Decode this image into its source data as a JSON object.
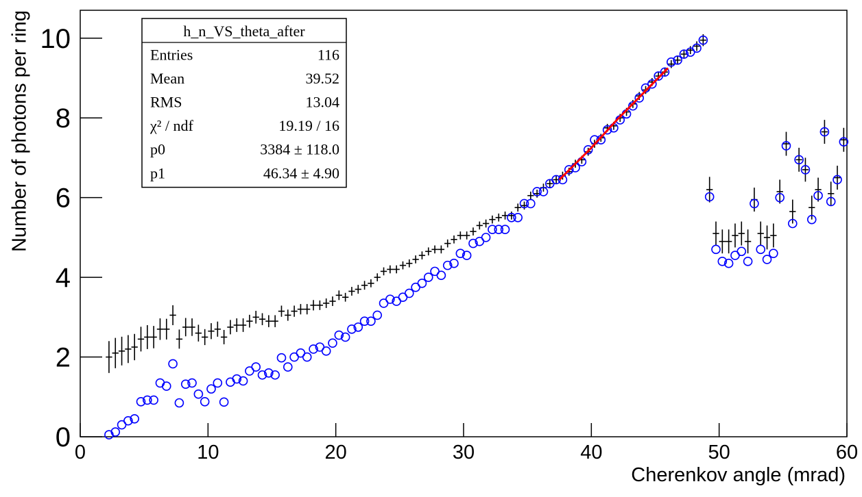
{
  "chart_data": {
    "type": "scatter",
    "xlabel": "Cherenkov angle (mrad)",
    "ylabel": "Number of photons per ring",
    "xlim": [
      0,
      60
    ],
    "xticks": [
      0,
      10,
      20,
      30,
      40,
      50,
      60
    ],
    "ylim": [
      0,
      10.7
    ],
    "yticks": [
      0,
      2,
      4,
      6,
      8,
      10
    ],
    "x": [
      2.25,
      2.75,
      3.25,
      3.75,
      4.25,
      4.75,
      5.25,
      5.75,
      6.25,
      6.75,
      7.25,
      7.75,
      8.25,
      8.75,
      9.25,
      9.75,
      10.25,
      10.75,
      11.25,
      11.75,
      12.25,
      12.75,
      13.25,
      13.75,
      14.25,
      14.75,
      15.25,
      15.75,
      16.25,
      16.75,
      17.25,
      17.75,
      18.25,
      18.75,
      19.25,
      19.75,
      20.25,
      20.75,
      21.25,
      21.75,
      22.25,
      22.75,
      23.25,
      23.75,
      24.25,
      24.75,
      25.25,
      25.75,
      26.25,
      26.75,
      27.25,
      27.75,
      28.25,
      28.75,
      29.25,
      29.75,
      30.25,
      30.75,
      31.25,
      31.75,
      32.25,
      32.75,
      33.25,
      33.75,
      34.25,
      34.75,
      35.25,
      35.75,
      36.25,
      36.75,
      37.25,
      37.75,
      38.25,
      38.75,
      39.25,
      39.75,
      40.25,
      40.75,
      41.25,
      41.75,
      42.25,
      42.75,
      43.25,
      43.75,
      44.25,
      44.75,
      45.25,
      45.75,
      46.25,
      46.75,
      47.25,
      47.75,
      48.25,
      48.75,
      49.25,
      49.75,
      50.25,
      50.75,
      51.25,
      51.75,
      52.25,
      52.75,
      53.25,
      53.75,
      54.25,
      54.75,
      55.25,
      55.75,
      56.25,
      56.75,
      57.25,
      57.75,
      58.25,
      58.75,
      59.25,
      59.75
    ],
    "series": [
      {
        "marker": "cross",
        "color": "#000000",
        "values": [
          2.0,
          2.1,
          2.15,
          2.2,
          2.25,
          2.45,
          2.5,
          2.5,
          2.7,
          2.7,
          3.05,
          2.45,
          2.75,
          2.75,
          2.6,
          2.5,
          2.65,
          2.7,
          2.5,
          2.75,
          2.8,
          2.8,
          2.9,
          3.0,
          2.95,
          2.9,
          2.9,
          3.15,
          3.05,
          3.15,
          3.2,
          3.2,
          3.3,
          3.3,
          3.35,
          3.4,
          3.55,
          3.5,
          3.65,
          3.7,
          3.8,
          3.85,
          4.0,
          4.15,
          4.2,
          4.2,
          4.3,
          4.35,
          4.45,
          4.55,
          4.65,
          4.7,
          4.7,
          4.85,
          4.95,
          5.05,
          5.05,
          5.15,
          5.3,
          5.35,
          5.45,
          5.5,
          5.55,
          5.55,
          5.75,
          5.8,
          6.05,
          6.1,
          6.25,
          6.35,
          6.45,
          6.55,
          6.65,
          6.85,
          6.95,
          7.15,
          7.35,
          7.5,
          7.75,
          7.8,
          8.0,
          8.15,
          8.35,
          8.55,
          8.7,
          8.9,
          9.05,
          9.15,
          9.35,
          9.45,
          9.6,
          9.7,
          9.8,
          9.95,
          6.2,
          5.1,
          4.9,
          4.9,
          5.05,
          5.1,
          4.9,
          5.95,
          5.1,
          5.0,
          5.05,
          6.15,
          7.35,
          5.65,
          6.95,
          6.7,
          5.75,
          6.2,
          7.65,
          6.1,
          6.5,
          7.45
        ],
        "errors": [
          0.4,
          0.38,
          0.36,
          0.35,
          0.33,
          0.31,
          0.3,
          0.28,
          0.27,
          0.26,
          0.25,
          0.24,
          0.23,
          0.22,
          0.21,
          0.2,
          0.2,
          0.19,
          0.18,
          0.18,
          0.17,
          0.17,
          0.16,
          0.16,
          0.15,
          0.15,
          0.15,
          0.14,
          0.14,
          0.14,
          0.13,
          0.13,
          0.13,
          0.12,
          0.12,
          0.12,
          0.12,
          0.11,
          0.11,
          0.11,
          0.11,
          0.1,
          0.1,
          0.1,
          0.1,
          0.1,
          0.1,
          0.1,
          0.1,
          0.1,
          0.1,
          0.1,
          0.1,
          0.1,
          0.1,
          0.1,
          0.1,
          0.1,
          0.1,
          0.1,
          0.1,
          0.1,
          0.1,
          0.1,
          0.1,
          0.1,
          0.1,
          0.1,
          0.1,
          0.1,
          0.1,
          0.1,
          0.1,
          0.1,
          0.1,
          0.1,
          0.1,
          0.1,
          0.1,
          0.1,
          0.1,
          0.1,
          0.1,
          0.1,
          0.1,
          0.1,
          0.1,
          0.1,
          0.1,
          0.1,
          0.1,
          0.1,
          0.12,
          0.15,
          0.32,
          0.3,
          0.3,
          0.3,
          0.3,
          0.3,
          0.3,
          0.3,
          0.3,
          0.3,
          0.3,
          0.3,
          0.3,
          0.3,
          0.3,
          0.3,
          0.3,
          0.3,
          0.3,
          0.3,
          0.3,
          0.3
        ]
      },
      {
        "marker": "circle",
        "color": "#0000ff",
        "values": [
          0.05,
          0.12,
          0.3,
          0.4,
          0.45,
          0.88,
          0.92,
          0.92,
          1.35,
          1.27,
          1.83,
          0.85,
          1.32,
          1.35,
          1.07,
          0.88,
          1.2,
          1.35,
          0.87,
          1.37,
          1.45,
          1.4,
          1.65,
          1.75,
          1.55,
          1.6,
          1.55,
          1.98,
          1.75,
          2.0,
          2.1,
          2.0,
          2.2,
          2.25,
          2.15,
          2.35,
          2.55,
          2.5,
          2.7,
          2.75,
          2.9,
          2.9,
          3.05,
          3.35,
          3.45,
          3.4,
          3.5,
          3.6,
          3.75,
          3.85,
          4.0,
          4.15,
          4.05,
          4.3,
          4.35,
          4.6,
          4.55,
          4.85,
          4.9,
          5.0,
          5.2,
          5.2,
          5.2,
          5.5,
          5.5,
          5.85,
          5.85,
          6.15,
          6.15,
          6.35,
          6.45,
          6.45,
          6.7,
          6.75,
          6.9,
          7.2,
          7.45,
          7.45,
          7.7,
          7.75,
          7.95,
          8.1,
          8.3,
          8.5,
          8.75,
          8.85,
          9.05,
          9.15,
          9.4,
          9.45,
          9.6,
          9.65,
          9.75,
          9.95,
          6.02,
          4.7,
          4.4,
          4.35,
          4.55,
          4.65,
          4.4,
          5.85,
          4.7,
          4.45,
          4.6,
          6.0,
          7.3,
          5.35,
          6.95,
          6.7,
          5.45,
          6.05,
          7.65,
          5.9,
          6.45,
          7.4
        ]
      }
    ],
    "fit": {
      "color": "#ff0000",
      "x": [
        37.5,
        40,
        42,
        44,
        46
      ],
      "y": [
        6.45,
        7.25,
        7.95,
        8.6,
        9.25
      ]
    },
    "stats_box": {
      "title": "h_n_VS_theta_after",
      "rows": [
        {
          "label": "Entries",
          "value": "116"
        },
        {
          "label": "Mean",
          "value": "39.52"
        },
        {
          "label": "RMS",
          "value": "13.04"
        },
        {
          "label": "χ² / ndf",
          "value": "19.19 / 16"
        },
        {
          "label": "p0",
          "value": "3384 ± 118.0"
        },
        {
          "label": "p1",
          "value": "46.34 ± 4.90"
        }
      ]
    }
  }
}
